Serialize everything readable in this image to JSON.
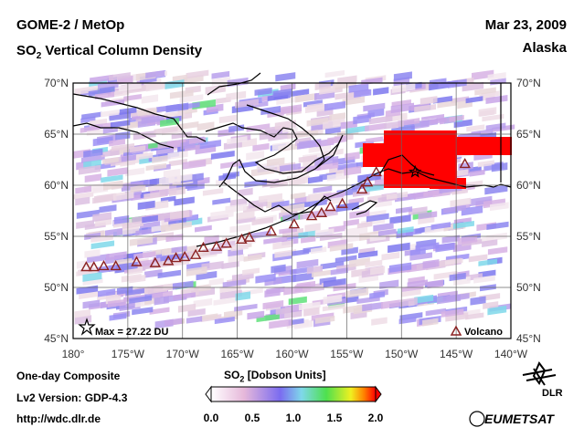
{
  "header": {
    "instrument": "GOME-2 / MetOp",
    "product_prefix": "SO",
    "product_sub": "2",
    "product_suffix": " Vertical Column Density",
    "date": "Mar 23, 2009",
    "region": "Alaska"
  },
  "map": {
    "lat_labels": [
      "70°N",
      "65°N",
      "60°N",
      "55°N",
      "50°N",
      "45°N"
    ],
    "lon_labels": [
      "180°",
      "175°W",
      "170°W",
      "165°W",
      "160°W",
      "155°W",
      "150°W",
      "145°W",
      "140°W"
    ],
    "lon_range": [
      -180,
      -140
    ],
    "lat_range": [
      45,
      70
    ],
    "max_label": "Max = 27.22 DU",
    "max_location": {
      "lon": -148.75,
      "lat": 61.3
    },
    "volcano_label": "Volcano",
    "volcanoes": [
      [
        -178.8,
        52.0
      ],
      [
        -178.1,
        52.0
      ],
      [
        -177.2,
        52.1
      ],
      [
        -176.1,
        52.1
      ],
      [
        -174.2,
        52.5
      ],
      [
        -172.5,
        52.4
      ],
      [
        -171.3,
        52.6
      ],
      [
        -170.6,
        52.9
      ],
      [
        -169.8,
        53.0
      ],
      [
        -168.8,
        53.2
      ],
      [
        -168.1,
        53.9
      ],
      [
        -166.9,
        54.0
      ],
      [
        -166.0,
        54.3
      ],
      [
        -164.6,
        54.7
      ],
      [
        -163.9,
        54.9
      ],
      [
        -161.9,
        55.5
      ],
      [
        -159.8,
        56.2
      ],
      [
        -158.2,
        57.0
      ],
      [
        -157.3,
        57.3
      ],
      [
        -156.5,
        57.9
      ],
      [
        -155.4,
        58.2
      ],
      [
        -153.6,
        59.6
      ],
      [
        -153.1,
        60.3
      ],
      [
        -152.3,
        61.3
      ],
      [
        -144.2,
        62.1
      ]
    ],
    "colors": {
      "volcano": "#8b2323",
      "plume": "#ff0000"
    }
  },
  "footer": {
    "composite": "One-day Composite",
    "version": "Lv2 Version: GDP-4.3",
    "url": "http://wdc.dlr.de",
    "colorbar_title_prefix": "SO",
    "colorbar_title_sub": "2",
    "colorbar_title_suffix": " [Dobson Units]",
    "colorbar_ticks": [
      "0.0",
      "0.5",
      "1.0",
      "1.5",
      "2.0"
    ],
    "colorbar_range": [
      0,
      2
    ],
    "dlr_label": "DLR",
    "eumetsat_label": "EUMETSAT"
  }
}
